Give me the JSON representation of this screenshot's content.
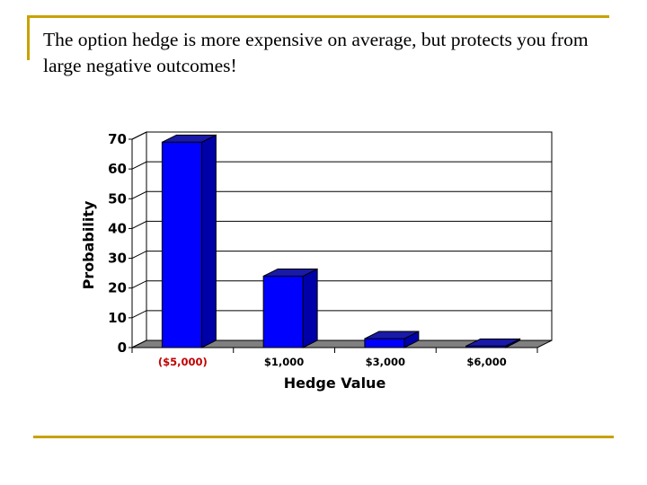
{
  "slide": {
    "title": "The option hedge is more expensive on average, but protects you from large negative outcomes!"
  },
  "colors": {
    "rule": "#c8a200",
    "bar_front": "#0000ff",
    "bar_side": "#0000a8",
    "bar_top": "#1a1aa8",
    "floor": "#808080",
    "highlight_label": "#c00000"
  },
  "chart_data": {
    "type": "bar",
    "three_d": true,
    "categories": [
      "($5,000)",
      "$1,000",
      "$3,000",
      "$6,000"
    ],
    "category_label_colors": [
      "#c00000",
      "#000000",
      "#000000",
      "#000000"
    ],
    "values": [
      69,
      24,
      3,
      0.5
    ],
    "xlabel": "Hedge Value",
    "ylabel": "Probability",
    "ylim": [
      0,
      70
    ],
    "yticks": [
      0,
      10,
      20,
      30,
      40,
      50,
      60,
      70
    ],
    "grid": true,
    "legend": "none"
  }
}
